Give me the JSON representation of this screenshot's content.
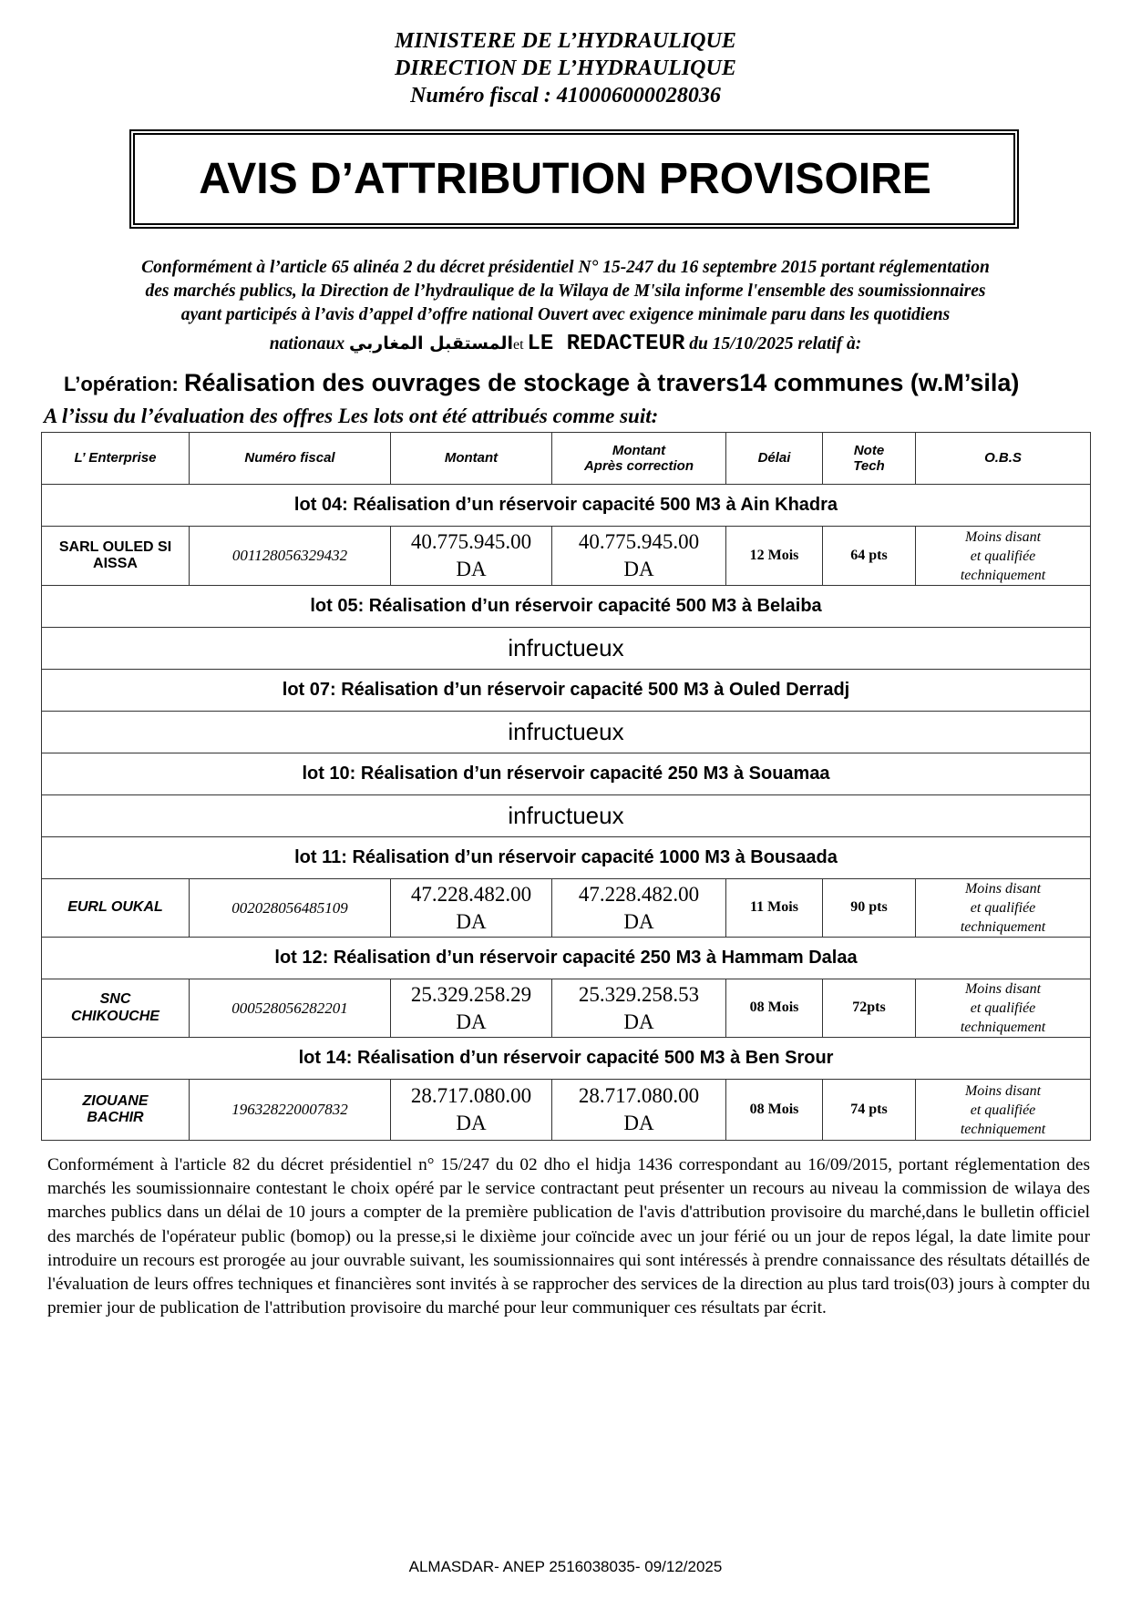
{
  "header": {
    "ministry": "MINISTERE DE L’HYDRAULIQUE",
    "direction": "DIRECTION  DE L’HYDRAULIQUE",
    "fiscal": "Numéro fiscal : 410006000028036"
  },
  "title": "AVIS D’ATTRIBUTION PROVISOIRE",
  "intro": {
    "line1": "Conformément à l’article 65 alinéa 2 du décret présidentiel N° 15-247 du 16 septembre  2015 portant réglementation",
    "line2": "des marchés publics, la Direction de l’hydraulique de la Wilaya de M'sila informe  l'ensemble des soumissionnaires",
    "line3": "ayant participés à l’avis d’appel d’offre national Ouvert avec exigence minimale paru dans les quotidiens",
    "line4_a": "nationaux ",
    "newspaper_ar": "المستقبل المغاربي",
    "line4_et": "et ",
    "newspaper_fr": "LE REDACTEUR",
    "line4_b": " du 15/10/2025  relatif à:"
  },
  "operation": {
    "label": "L’opération: ",
    "text": "Réalisation des ouvrages de stockage à travers14 communes (w.M’sila)"
  },
  "issu": "A l’issu du l’évaluation des offres Les lots ont été attribués comme suit:",
  "table": {
    "headers": [
      "L’ Enterprise",
      "Numéro fiscal",
      "Montant",
      "Montant",
      "Après correction",
      "Délai",
      "Note",
      "Tech",
      "O.B.S"
    ],
    "obs": [
      "Moins disant",
      "et  qualifiée",
      "techniquement"
    ],
    "lots": [
      {
        "title": "lot 04: Réalisation  d’un réservoir capacité 500 M3 à Ain Khadra",
        "row": {
          "ent1": "SARL OULED SI",
          "ent2": "AISSA",
          "nf": "001128056329432",
          "m1": "40.775.945.00",
          "m2": "40.775.945.00",
          "cur": "DA",
          "delai": "12 Mois",
          "note": "64 pts"
        }
      },
      {
        "title": "lot 05: Réalisation  d’un réservoir capacité 500 M3 à Belaiba",
        "status": "infructueux"
      },
      {
        "title": "lot 07: Réalisation  d’un réservoir capacité 500 M3 à Ouled Derradj",
        "status": "infructueux"
      },
      {
        "title": "lot 10: Réalisation  d’un réservoir capacité 250 M3 à Souamaa",
        "status": "infructueux"
      },
      {
        "title": "lot 11: Réalisation  d’un réservoir capacité 1000 M3 à Bousaada",
        "row": {
          "ent1": "EURL OUKAL",
          "ent2": "",
          "nf": "002028056485109",
          "m1": "47.228.482.00",
          "m2": "47.228.482.00",
          "cur": "DA",
          "delai": "11 Mois",
          "note": "90 pts"
        }
      },
      {
        "title": "lot 12: Réalisation  d’un réservoir capacité 250 M3 à Hammam Dalaa",
        "row": {
          "ent1": "SNC",
          "ent2": "CHIKOUCHE",
          "nf": "000528056282201",
          "m1": "25.329.258.29",
          "m2": "25.329.258.53",
          "cur": "DA",
          "delai": "08 Mois",
          "note": "72pts"
        }
      },
      {
        "title": "lot 14: Réalisation  d’un réservoir capacité 500 M3 à Ben Srour",
        "row": {
          "ent1": "ZIOUANE",
          "ent2": "BACHIR",
          "nf": "196328220007832",
          "m1": "28.717.080.00",
          "m2": "28.717.080.00",
          "cur": "DA",
          "delai": "08 Mois",
          "note": "74 pts"
        }
      }
    ]
  },
  "legal": "Conformément à l'article 82 du décret présidentiel n° 15/247 du 02 dho el hidja 1436 correspondant au 16/09/2015, portant réglementation des marchés les soumissionnaire contestant le choix opéré par le service contractant peut présenter un recours au niveau la commission de wilaya  des marches publics dans un délai de 10 jours a compter de la première publication de l'avis d'attribution provisoire du marché,dans le bulletin officiel des marchés de l'opérateur public (bomop) ou la presse,si le dixième jour coïncide avec un jour férié ou un jour de repos légal, la date limite pour introduire un recours est prorogée au jour ouvrable suivant, les soumissionnaires qui sont intéressés à prendre connaissance des résultats détaillés de l'évaluation de leurs offres techniques et financières sont invités à se rapprocher des services de la direction au plus tard trois(03) jours à compter du premier jour de publication de l'attribution provisoire du marché pour leur communiquer ces résultats par écrit.",
  "footer": "ALMASDAR- ANEP 2516038035- 09/12/2025"
}
